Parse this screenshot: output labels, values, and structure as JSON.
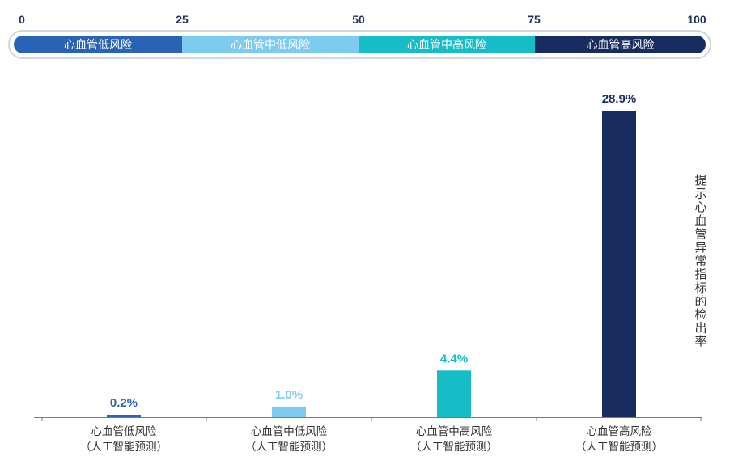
{
  "chart_data": {
    "type": "bar",
    "scale": {
      "ticks": [
        "0",
        "25",
        "50",
        "75",
        "100"
      ],
      "segments": [
        {
          "label": "心血管低风险",
          "color": "#2a63b6"
        },
        {
          "label": "心血管中低风险",
          "color": "#7dcbef"
        },
        {
          "label": "心血管中高风险",
          "color": "#16bcc6"
        },
        {
          "label": "心血管高风险",
          "color": "#182c5f"
        }
      ]
    },
    "categories": [
      [
        "心血管低风险",
        "（人工智能预测）"
      ],
      [
        "心血管中低风险",
        "（人工智能预测）"
      ],
      [
        "心血管中高风险",
        "（人工智能预测）"
      ],
      [
        "心血管高风险",
        "（人工智能预测）"
      ]
    ],
    "values": [
      0.2,
      1.0,
      4.4,
      28.9
    ],
    "value_labels": [
      "0.2%",
      "1.0%",
      "4.4%",
      "28.9%"
    ],
    "bar_colors": [
      "#2a63b6",
      "#7dcbef",
      "#16bcc6",
      "#182c5f"
    ],
    "label_colors": [
      "#2a63b6",
      "#7dcbef",
      "#16bcc6",
      "#182c5f"
    ],
    "ylabel": "提示心血管异常指标的检出率",
    "ylim": [
      0,
      30
    ]
  }
}
